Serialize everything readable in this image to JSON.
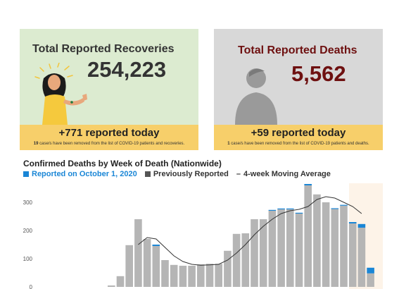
{
  "recoveries": {
    "title": "Total Reported Recoveries",
    "value": "254,223",
    "today": "+771 reported today",
    "note_count": "19",
    "note_text": " case/s have been removed from the list of COVID-19 patients and recoveries."
  },
  "deaths": {
    "title": "Total Reported Deaths",
    "value": "5,562",
    "today": "+59 reported today",
    "note_count": "1",
    "note_text": " case/s have been removed from the list of COVID-19 patients and deaths."
  },
  "colors": {
    "recoveries_bg": "#dcebd0",
    "deaths_bg": "#d8d8d8",
    "band": "#f7cf6a",
    "deaths_text": "#6e1010",
    "reported_on": "#1a86d6",
    "previously": "#b5b5b5",
    "average_line": "#333333"
  },
  "chart_data": {
    "type": "bar",
    "title": "Confirmed Deaths by Week of Death (Nationwide)",
    "stacked": true,
    "legend": {
      "position": "top-left",
      "items": [
        {
          "label": "Reported on October 1, 2020",
          "color": "#1a86d6"
        },
        {
          "label": "Previously Reported",
          "color": "#555555"
        },
        {
          "label": "4-week Moving Average",
          "symbol": "–"
        }
      ]
    },
    "y_ticks": [
      "0",
      "100",
      "200",
      "300"
    ],
    "ylim": [
      0,
      380
    ],
    "grid": false,
    "series": [
      {
        "name": "Previously Reported",
        "values": [
          5,
          38,
          148,
          240,
          170,
          145,
          95,
          78,
          75,
          75,
          80,
          82,
          82,
          128,
          188,
          190,
          240,
          240,
          270,
          275,
          275,
          260,
          360,
          328,
          300,
          276,
          288,
          225,
          210,
          48
        ]
      },
      {
        "name": "Reported on October 1, 2020",
        "values": [
          0,
          0,
          0,
          0,
          0,
          5,
          0,
          0,
          0,
          0,
          0,
          0,
          0,
          0,
          0,
          0,
          0,
          0,
          3,
          3,
          3,
          3,
          5,
          0,
          0,
          3,
          3,
          5,
          13,
          20
        ]
      }
    ],
    "moving_average": [
      null,
      null,
      null,
      150,
      175,
      170,
      140,
      110,
      90,
      80,
      77,
      78,
      80,
      95,
      120,
      150,
      185,
      215,
      240,
      260,
      270,
      275,
      285,
      310,
      320,
      315,
      300,
      285,
      260,
      null
    ]
  }
}
